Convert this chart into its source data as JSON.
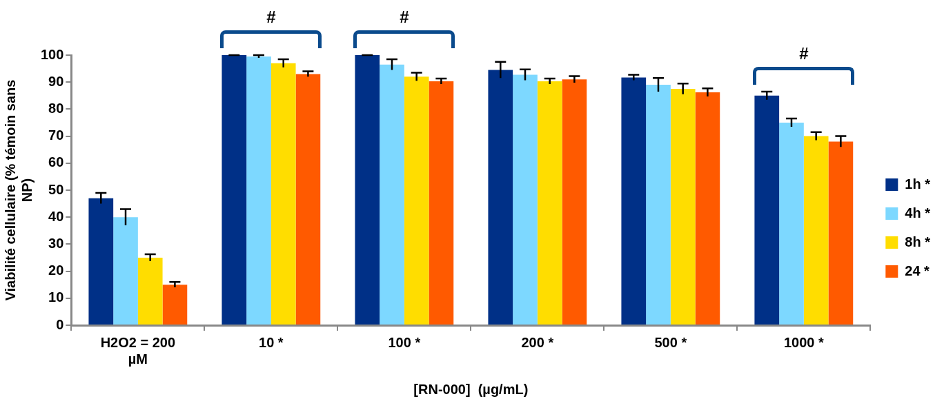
{
  "chart_data": {
    "type": "bar",
    "xlabel": "[RN-000]  (µg/mL)",
    "ylabel": "Viabilité cellulaire (% témoin sans NP)",
    "categories": [
      "H2O2 = 200 µM",
      "10 *",
      "100 *",
      "200 *",
      "500 *",
      "1000 *"
    ],
    "series": [
      {
        "name": "1h *",
        "color": "#003087",
        "values": [
          47,
          100,
          100,
          94.5,
          91.7,
          85
        ],
        "errors": [
          2,
          0,
          0,
          3,
          1,
          1.5
        ]
      },
      {
        "name": "4h *",
        "color": "#7dd8ff",
        "values": [
          40,
          99.5,
          96.5,
          92.7,
          89,
          75
        ],
        "errors": [
          3,
          0.5,
          2,
          2,
          2.5,
          1.5
        ]
      },
      {
        "name": "8h *",
        "color": "#ffdd00",
        "values": [
          25,
          97,
          92,
          90.3,
          87.5,
          70
        ],
        "errors": [
          1.3,
          1.5,
          1.5,
          1,
          2,
          1.5
        ]
      },
      {
        "name": "24 *",
        "color": "#ff5a00",
        "values": [
          15,
          93,
          90.3,
          91,
          86.2,
          68
        ],
        "errors": [
          1,
          1,
          1,
          1.2,
          1.5,
          2
        ]
      }
    ],
    "ylim": [
      0,
      100
    ],
    "yticks": [
      0,
      10,
      20,
      30,
      40,
      50,
      60,
      70,
      80,
      90,
      100
    ],
    "annotations": [
      "#",
      "#",
      "#"
    ],
    "legend": "right"
  }
}
